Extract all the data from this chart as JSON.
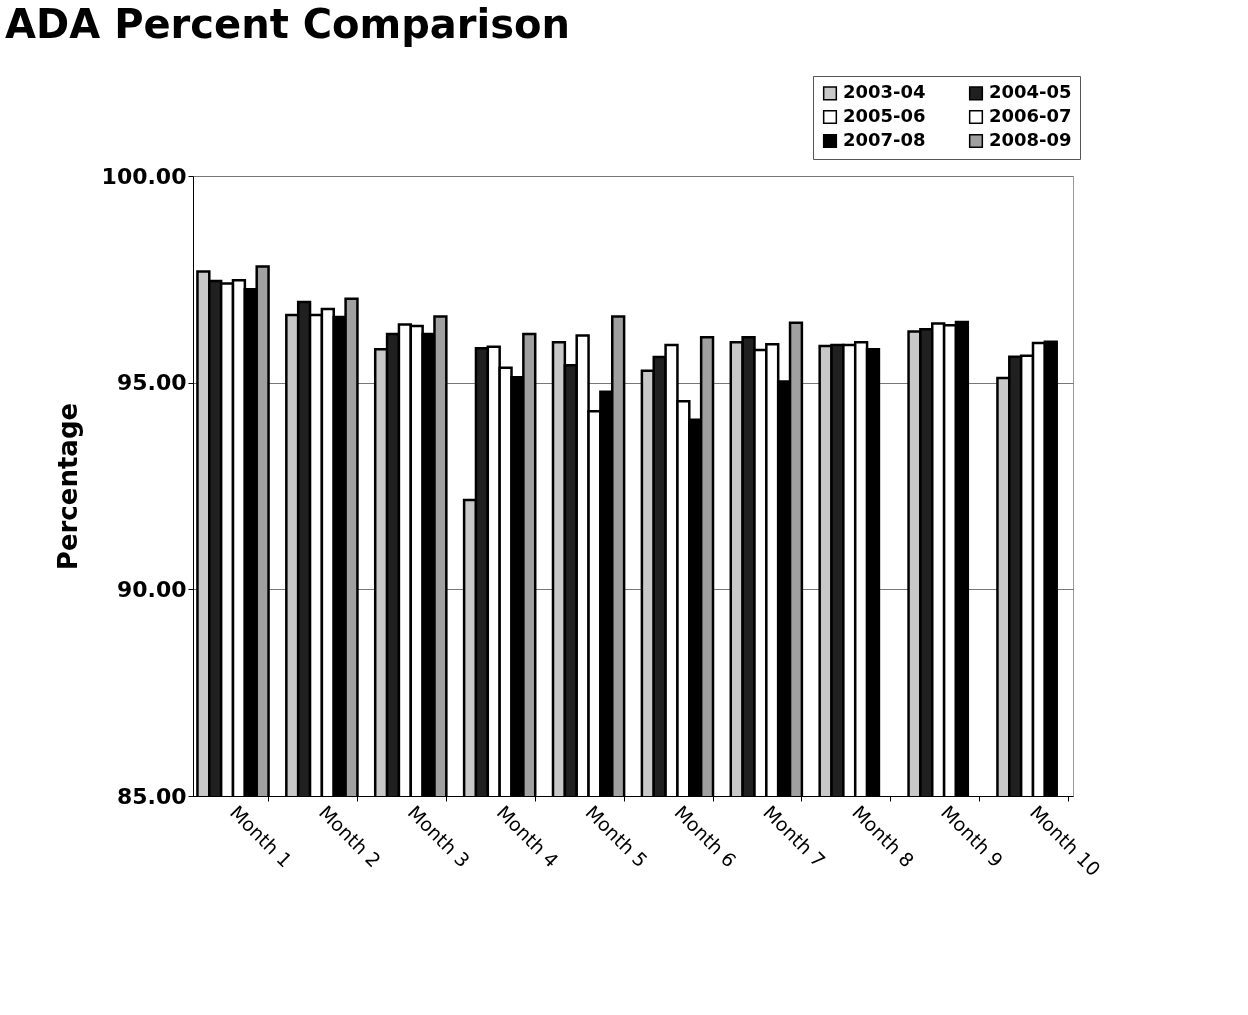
{
  "chart_data": {
    "type": "bar",
    "title": "ADA Percent Comparison",
    "ylabel": "Percentage",
    "categories": [
      "Month 1",
      "Month 2",
      "Month 3",
      "Month 4",
      "Month 5",
      "Month 6",
      "Month 7",
      "Month 8",
      "Month 9",
      "Month 10"
    ],
    "series": [
      {
        "name": "2003-04",
        "color": "#c8c8c8",
        "values": [
          97.69,
          96.64,
          95.81,
          92.16,
          95.98,
          95.29,
          95.98,
          95.89,
          96.24,
          95.11
        ]
      },
      {
        "name": "2004-05",
        "color": "#202020",
        "values": [
          97.46,
          96.95,
          96.18,
          95.83,
          95.42,
          95.62,
          96.1,
          95.91,
          96.29,
          95.63
        ]
      },
      {
        "name": "2005-06",
        "color": "#ffffff",
        "values": [
          97.4,
          96.64,
          96.41,
          95.87,
          96.14,
          95.91,
          95.79,
          95.91,
          96.43,
          95.65
        ]
      },
      {
        "name": "2006-07",
        "color": "#ffffff",
        "values": [
          97.48,
          96.78,
          96.37,
          95.36,
          94.31,
          94.55,
          95.93,
          95.98,
          96.39,
          95.96
        ]
      },
      {
        "name": "2007-08",
        "color": "#000000",
        "values": [
          97.26,
          96.59,
          96.18,
          95.13,
          94.78,
          94.1,
          95.03,
          95.81,
          96.47,
          95.99
        ]
      },
      {
        "name": "2008-09",
        "color": "#a0a0a0",
        "values": [
          97.81,
          97.03,
          96.6,
          96.18,
          96.6,
          96.1,
          96.45,
          null,
          null,
          null
        ]
      }
    ],
    "ylim": [
      85,
      100
    ],
    "yticks": [
      {
        "value": 85,
        "label": "85.00"
      },
      {
        "value": 90,
        "label": "90.00"
      },
      {
        "value": 95,
        "label": "95.00"
      },
      {
        "value": 100,
        "label": "100.00"
      }
    ],
    "grid": "y",
    "legend": "top right"
  }
}
